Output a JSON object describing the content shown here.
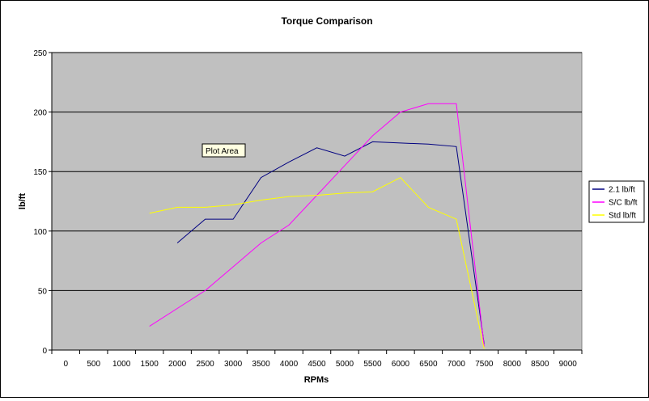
{
  "chart_data": {
    "type": "line",
    "title": "Torque Comparison",
    "xlabel": "RPMs",
    "ylabel": "lb/ft",
    "categories": [
      "0",
      "500",
      "1000",
      "1500",
      "2000",
      "2500",
      "3000",
      "3500",
      "4000",
      "4500",
      "5000",
      "5500",
      "6000",
      "6500",
      "7000",
      "7500",
      "8000",
      "8500",
      "9000"
    ],
    "ylim": [
      0,
      250
    ],
    "yticks": [
      0,
      50,
      100,
      150,
      200,
      250
    ],
    "grid": "horizontal",
    "legend_position": "right",
    "series": [
      {
        "name": "2.1 lb/ft",
        "color": "#000080",
        "points": [
          [
            2000,
            90
          ],
          [
            2500,
            110
          ],
          [
            3000,
            110
          ],
          [
            3500,
            145
          ],
          [
            4000,
            158
          ],
          [
            4500,
            170
          ],
          [
            5000,
            163
          ],
          [
            5500,
            175
          ],
          [
            6000,
            174
          ],
          [
            6500,
            173
          ],
          [
            7000,
            171
          ],
          [
            7500,
            5
          ]
        ]
      },
      {
        "name": "S/C lb/ft",
        "color": "#ff00ff",
        "points": [
          [
            1500,
            20
          ],
          [
            2000,
            35
          ],
          [
            2500,
            50
          ],
          [
            3000,
            70
          ],
          [
            3500,
            90
          ],
          [
            4000,
            105
          ],
          [
            4500,
            130
          ],
          [
            5000,
            155
          ],
          [
            5500,
            180
          ],
          [
            6000,
            200
          ],
          [
            6500,
            207
          ],
          [
            7000,
            207
          ],
          [
            7500,
            3
          ]
        ]
      },
      {
        "name": "Std lb/ft",
        "color": "#ffff00",
        "points": [
          [
            1500,
            115
          ],
          [
            2000,
            120
          ],
          [
            2500,
            120
          ],
          [
            3000,
            122
          ],
          [
            3500,
            126
          ],
          [
            4000,
            129
          ],
          [
            4500,
            130
          ],
          [
            5000,
            132
          ],
          [
            5500,
            133
          ],
          [
            6000,
            145
          ],
          [
            6500,
            120
          ],
          [
            7000,
            110
          ],
          [
            7500,
            1
          ]
        ]
      }
    ],
    "annotation": "Plot Area"
  },
  "colors": {
    "plot_background": "#c0c0c0",
    "gridline": "#000000"
  }
}
